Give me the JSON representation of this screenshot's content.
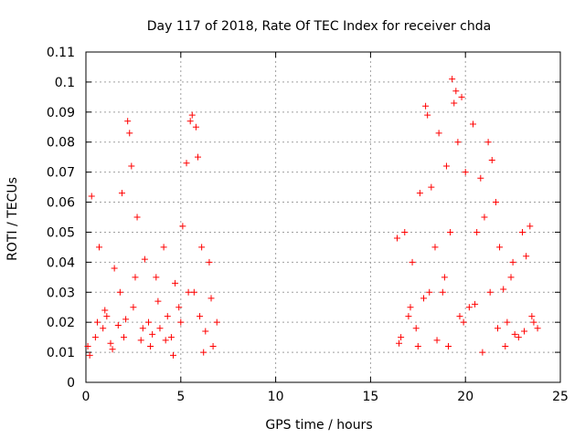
{
  "chart_data": {
    "type": "scatter",
    "title": "Day 117 of 2018, Rate Of TEC Index for receiver chda",
    "xlabel": "GPS time / hours",
    "ylabel": "ROTI / TECUs",
    "xlim": [
      0,
      25
    ],
    "ylim": [
      0,
      0.11
    ],
    "x_ticks": [
      0,
      5,
      10,
      15,
      20,
      25
    ],
    "x_tick_labels": [
      "0",
      "5",
      "10",
      "15",
      "20",
      "25"
    ],
    "y_ticks": [
      0,
      0.01,
      0.02,
      0.03,
      0.04,
      0.05,
      0.06,
      0.07,
      0.08,
      0.09,
      0.1,
      0.11
    ],
    "y_tick_labels": [
      "0",
      "0.01",
      "0.02",
      "0.03",
      "0.04",
      "0.05",
      "0.06",
      "0.07",
      "0.08",
      "0.09",
      "0.1",
      "0.11"
    ],
    "grid": true,
    "marker": "+",
    "color": "#ff0000",
    "series": [
      {
        "name": "ROTI",
        "x": [
          0.1,
          0.3,
          0.5,
          0.7,
          0.9,
          1.1,
          1.3,
          1.5,
          1.7,
          1.9,
          2.1,
          2.2,
          2.3,
          2.4,
          2.5,
          2.7,
          2.9,
          3.1,
          3.3,
          3.5,
          3.7,
          3.9,
          4.1,
          4.3,
          4.5,
          4.7,
          4.9,
          5.1,
          5.3,
          5.5,
          5.6,
          5.7,
          5.8,
          5.9,
          6.0,
          6.1,
          6.3,
          6.5,
          6.7,
          6.9,
          16.4,
          16.6,
          16.8,
          17.0,
          17.2,
          17.4,
          17.6,
          17.8,
          17.9,
          18.0,
          18.2,
          18.4,
          18.6,
          18.8,
          19.0,
          19.2,
          19.3,
          19.4,
          19.5,
          19.6,
          19.7,
          19.8,
          20.0,
          20.2,
          20.4,
          20.6,
          20.8,
          21.0,
          21.2,
          21.4,
          21.6,
          21.8,
          22.0,
          22.2,
          22.4,
          22.6,
          22.8,
          23.0,
          23.2,
          23.4,
          23.6,
          23.8,
          0.2,
          0.6,
          1.0,
          1.4,
          1.8,
          2.0,
          2.6,
          3.0,
          3.4,
          3.8,
          4.2,
          4.6,
          5.0,
          5.4,
          6.2,
          6.6,
          16.5,
          17.1,
          17.5,
          18.1,
          18.5,
          18.9,
          19.1,
          19.9,
          20.5,
          20.9,
          21.3,
          21.7,
          22.1,
          22.5,
          23.1,
          23.5
        ],
        "y": [
          0.012,
          0.062,
          0.015,
          0.045,
          0.018,
          0.022,
          0.013,
          0.038,
          0.019,
          0.063,
          0.021,
          0.087,
          0.083,
          0.072,
          0.025,
          0.055,
          0.014,
          0.041,
          0.02,
          0.016,
          0.035,
          0.018,
          0.045,
          0.022,
          0.015,
          0.033,
          0.025,
          0.052,
          0.073,
          0.087,
          0.089,
          0.03,
          0.085,
          0.075,
          0.022,
          0.045,
          0.017,
          0.04,
          0.012,
          0.02,
          0.048,
          0.015,
          0.05,
          0.022,
          0.04,
          0.018,
          0.063,
          0.028,
          0.092,
          0.089,
          0.065,
          0.045,
          0.083,
          0.03,
          0.072,
          0.05,
          0.101,
          0.093,
          0.097,
          0.08,
          0.022,
          0.095,
          0.07,
          0.025,
          0.086,
          0.05,
          0.068,
          0.055,
          0.08,
          0.074,
          0.06,
          0.045,
          0.031,
          0.02,
          0.035,
          0.016,
          0.015,
          0.05,
          0.042,
          0.052,
          0.02,
          0.018,
          0.009,
          0.02,
          0.024,
          0.011,
          0.03,
          0.015,
          0.035,
          0.018,
          0.012,
          0.027,
          0.014,
          0.009,
          0.02,
          0.03,
          0.01,
          0.028,
          0.013,
          0.025,
          0.012,
          0.03,
          0.014,
          0.035,
          0.012,
          0.02,
          0.026,
          0.01,
          0.03,
          0.018,
          0.012,
          0.04,
          0.017,
          0.022
        ]
      }
    ]
  }
}
